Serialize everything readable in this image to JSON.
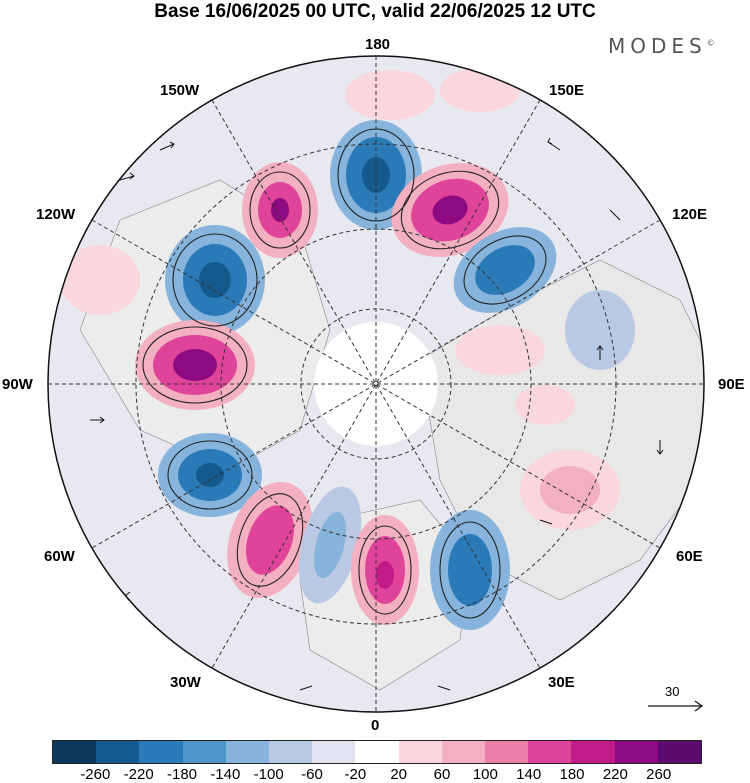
{
  "title": "Base 16/06/2025 00 UTC, valid 22/06/2025 12 UTC",
  "logo": {
    "text": "MODES",
    "mark": "©"
  },
  "longitude_labels": {
    "top": "180",
    "bottom": "0",
    "left": "90W",
    "right": "90E",
    "upper_left_1": "150W",
    "upper_left_2": "120W",
    "upper_right_1": "150E",
    "upper_right_2": "120E",
    "lower_left_1": "60W",
    "lower_left_2": "30W",
    "lower_right_1": "60E",
    "lower_right_2": "30E"
  },
  "reference_vector": {
    "value": "30"
  },
  "colorbar": {
    "ticks": [
      "-260",
      "-220",
      "-180",
      "-140",
      "-100",
      "-60",
      "-20",
      "20",
      "60",
      "100",
      "140",
      "180",
      "220",
      "260"
    ],
    "colors": [
      "#0d3a5c",
      "#145a8c",
      "#2a7ab8",
      "#4f97c8",
      "#86b4dc",
      "#b9c9e4",
      "#e2e4f1",
      "#ffffff",
      "#f9d7dc",
      "#f3b0c0",
      "#ec7fa8",
      "#e0449a",
      "#c31a8a",
      "#8e0a80",
      "#5b0a6e"
    ]
  },
  "map": {
    "projection": "north-polar-stereographic",
    "field_colors": {
      "ocean_background": "#e3e3ee",
      "land_outline": "#777777"
    }
  }
}
